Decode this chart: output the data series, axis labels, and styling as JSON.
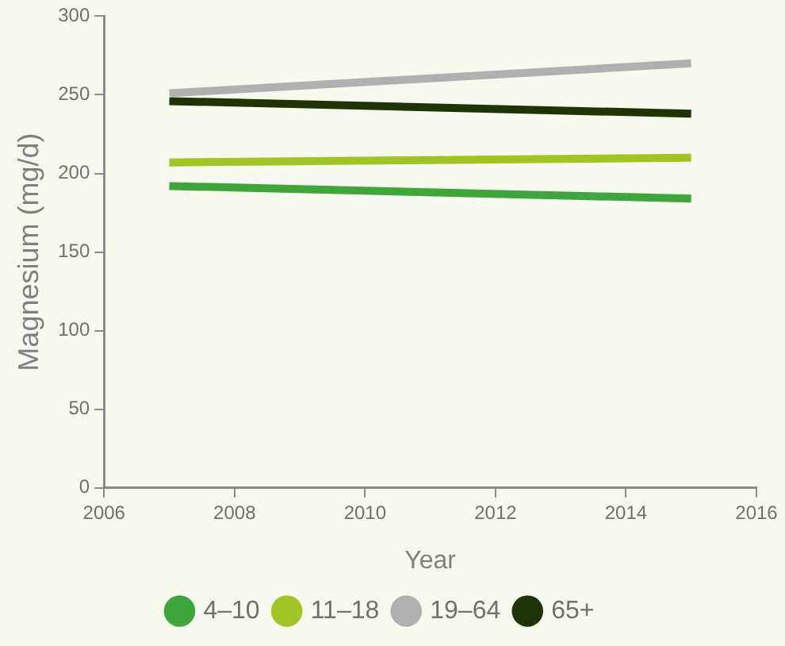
{
  "chart_data": {
    "type": "line",
    "xlabel": "Year",
    "ylabel": "Magnesium (mg/d)",
    "x": [
      2007,
      2015
    ],
    "xlim": [
      2006,
      2016
    ],
    "xticks": [
      2006,
      2008,
      2010,
      2012,
      2014,
      2016
    ],
    "ylim": [
      0,
      300
    ],
    "yticks": [
      0,
      50,
      100,
      150,
      200,
      250,
      300
    ],
    "grid": false,
    "legend": "bottom",
    "series": [
      {
        "name": "4–10",
        "color": "#3ea63a",
        "values": [
          192,
          184
        ]
      },
      {
        "name": "11–18",
        "color": "#a0c423",
        "values": [
          207,
          210
        ]
      },
      {
        "name": "19–64",
        "color": "#b0b0b0",
        "values": [
          251,
          270
        ]
      },
      {
        "name": "65+",
        "color": "#1f3306",
        "values": [
          246,
          238
        ]
      }
    ]
  }
}
